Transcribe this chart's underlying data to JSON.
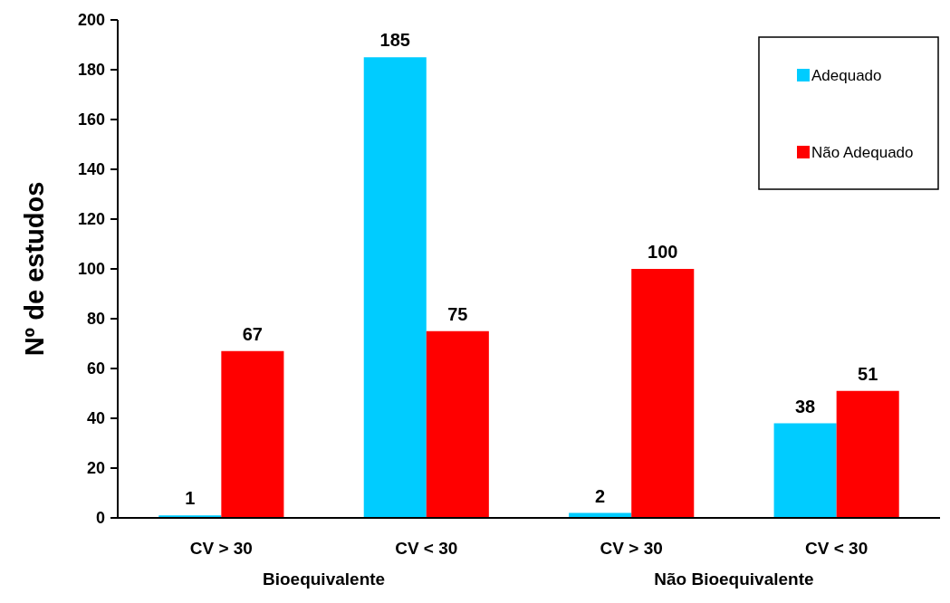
{
  "chart_data": {
    "type": "bar",
    "ylabel": "Nº de estudos",
    "categories": [
      "CV > 30",
      "CV < 30",
      "CV > 30",
      "CV < 30"
    ],
    "series": [
      {
        "name": "Adequado",
        "color": "#00ccff",
        "values": [
          1,
          185,
          2,
          38
        ]
      },
      {
        "name": "Não Adequado",
        "color": "#ff0000",
        "values": [
          67,
          75,
          100,
          51
        ]
      }
    ],
    "ylim": [
      0,
      200
    ],
    "yticks": [
      0,
      20,
      40,
      60,
      80,
      100,
      120,
      140,
      160,
      180,
      200
    ],
    "data_labels": true,
    "legend": "top right",
    "grid": false,
    "annotations": [
      "Bioequivalente",
      "Não Bioequivalente"
    ]
  }
}
